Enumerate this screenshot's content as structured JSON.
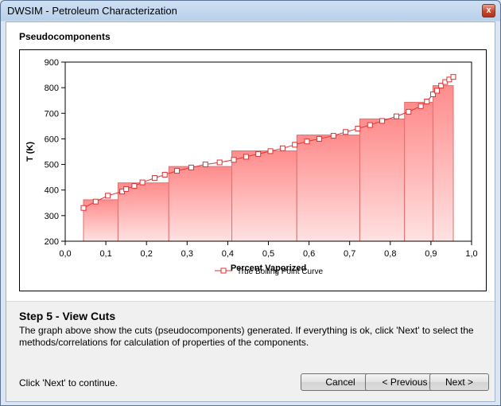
{
  "window": {
    "title": "DWSIM - Petroleum Characterization",
    "close_label": "x"
  },
  "section": {
    "title": "Pseudocomponents"
  },
  "step": {
    "title": "Step 5 - View Cuts",
    "description": "The graph above show the cuts (pseudocomponents) generated. If everything is ok, click 'Next' to select the methods/correlations for calculation of properties of the components."
  },
  "footer": {
    "hint": "Click 'Next' to continue."
  },
  "buttons": {
    "cancel": "Cancel",
    "previous": "< Previous",
    "next": "Next >"
  },
  "colors": {
    "curve": "#e03030",
    "bar_top": "#ff8c8c",
    "bar_bottom": "#ffe2e2",
    "bar_edge": "#e07070"
  },
  "chart_data": {
    "type": "bar",
    "xlabel": "Percent Vaporized",
    "ylabel": "T (K)",
    "xlim": [
      0.0,
      1.0
    ],
    "ylim": [
      200,
      900
    ],
    "x_ticks": [
      "0,0",
      "0,1",
      "0,2",
      "0,3",
      "0,4",
      "0,5",
      "0,6",
      "0,7",
      "0,8",
      "0,9",
      "1,0"
    ],
    "y_ticks": [
      "200",
      "300",
      "400",
      "500",
      "600",
      "700",
      "800",
      "900"
    ],
    "grid": false,
    "legend": "bottom-center",
    "bars": [
      {
        "x0": 0.045,
        "x1": 0.13,
        "value": 362
      },
      {
        "x0": 0.13,
        "x1": 0.255,
        "value": 428
      },
      {
        "x0": 0.255,
        "x1": 0.41,
        "value": 492
      },
      {
        "x0": 0.41,
        "x1": 0.57,
        "value": 553
      },
      {
        "x0": 0.57,
        "x1": 0.725,
        "value": 615
      },
      {
        "x0": 0.725,
        "x1": 0.835,
        "value": 678
      },
      {
        "x0": 0.835,
        "x1": 0.905,
        "value": 743
      },
      {
        "x0": 0.905,
        "x1": 0.955,
        "value": 808
      }
    ],
    "series": [
      {
        "name": "True Boiling Point Curve",
        "x": [
          0.045,
          0.075,
          0.105,
          0.14,
          0.15,
          0.17,
          0.19,
          0.22,
          0.245,
          0.275,
          0.31,
          0.345,
          0.38,
          0.415,
          0.445,
          0.475,
          0.505,
          0.535,
          0.565,
          0.595,
          0.625,
          0.66,
          0.69,
          0.72,
          0.75,
          0.78,
          0.815,
          0.845,
          0.875,
          0.89,
          0.905,
          0.915,
          0.925,
          0.935,
          0.945,
          0.955
        ],
        "y": [
          330,
          355,
          378,
          394,
          404,
          416,
          430,
          447,
          460,
          475,
          488,
          500,
          508,
          518,
          530,
          541,
          552,
          563,
          577,
          590,
          600,
          612,
          627,
          640,
          654,
          670,
          688,
          706,
          728,
          746,
          774,
          788,
          808,
          822,
          832,
          842
        ]
      }
    ]
  }
}
